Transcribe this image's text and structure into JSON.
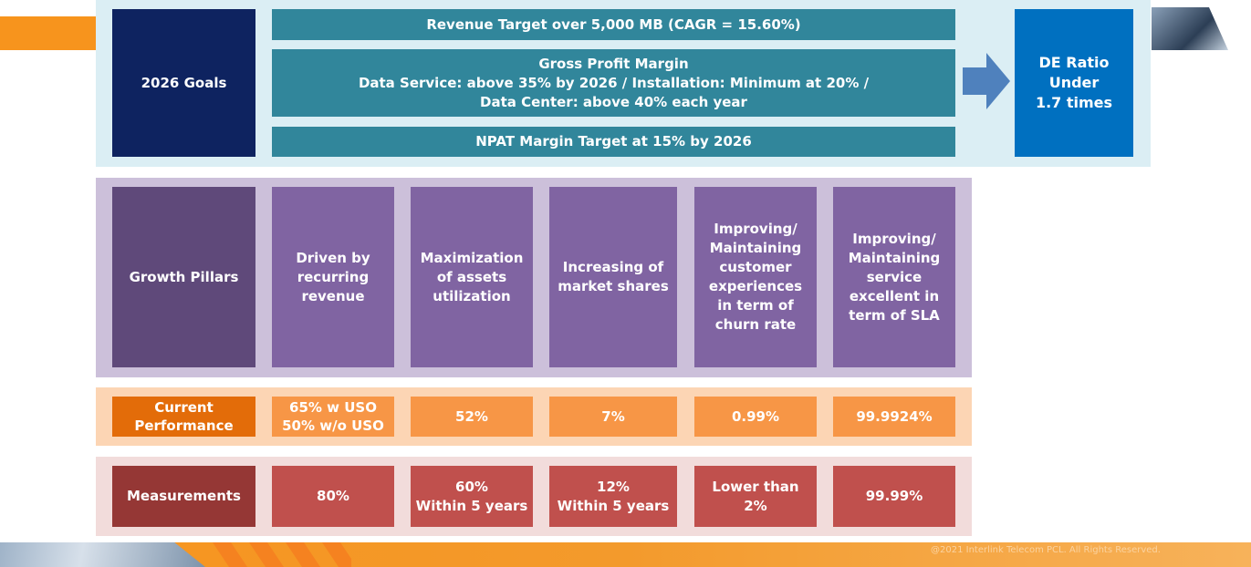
{
  "goals": {
    "label": "2026 Goals",
    "targets": [
      "Revenue Target over 5,000 MB (CAGR = 15.60%)",
      "Gross Profit Margin\nData Service: above 35% by 2026 / Installation: Minimum at 20% /\nData Center: above 40% each year",
      "NPAT Margin Target at 15% by 2026"
    ],
    "de_ratio": "DE Ratio\nUnder\n1.7 times"
  },
  "pillars": {
    "label": "Growth Pillars",
    "items": [
      "Driven by\nrecurring\nrevenue",
      "Maximization\nof assets\nutilization",
      "Increasing of\nmarket shares",
      "Improving/\nMaintaining\ncustomer\nexperiences\nin term of\nchurn rate",
      "Improving/\nMaintaining\nservice\nexcellent in\nterm of SLA"
    ]
  },
  "performance": {
    "label": "Current\nPerformance",
    "values": [
      "65% w USO\n50% w/o USO",
      "52%",
      "7%",
      "0.99%",
      "99.9924%"
    ]
  },
  "measurements": {
    "label": "Measurements",
    "values": [
      "80%",
      "60%\nWithin 5 years",
      "12%\nWithin 5 years",
      "Lower than\n2%",
      "99.99%"
    ]
  },
  "footer": {
    "copyright": "@2021 Interlink Telecom PCL. All Rights Reserved."
  }
}
